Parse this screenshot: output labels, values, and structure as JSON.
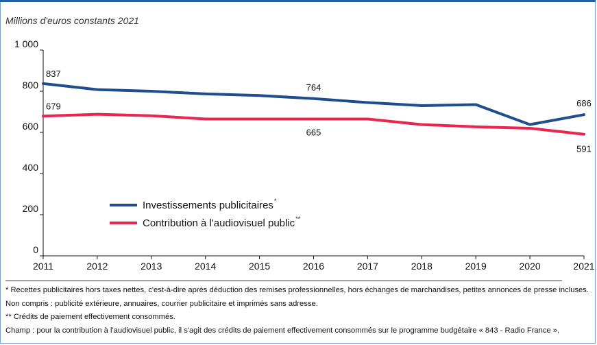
{
  "unit_label": "Millions d'euros constants 2021",
  "chart_data": {
    "type": "line",
    "x": [
      "2011",
      "2012",
      "2013",
      "2014",
      "2015",
      "2016",
      "2017",
      "2018",
      "2019",
      "2020",
      "2021"
    ],
    "ylim": [
      0,
      1000
    ],
    "yticks": [
      0,
      200,
      400,
      600,
      800,
      1000
    ],
    "ytick_labels": [
      "0",
      "200",
      "400",
      "600",
      "800",
      "1 000"
    ],
    "series": [
      {
        "name": "Investissements publicitaires",
        "marker": "*",
        "color": "#1f4e8c",
        "values": [
          837,
          808,
          800,
          787,
          779,
          764,
          745,
          730,
          735,
          638,
          686
        ]
      },
      {
        "name": "Contribution à l'audiovisuel public",
        "marker": "**",
        "color": "#e8264f",
        "values": [
          679,
          688,
          681,
          665,
          665,
          665,
          665,
          638,
          627,
          620,
          591
        ]
      }
    ],
    "data_labels": [
      {
        "series": 0,
        "index": 0,
        "text": "837"
      },
      {
        "series": 0,
        "index": 5,
        "text": "764"
      },
      {
        "series": 0,
        "index": 10,
        "text": "686"
      },
      {
        "series": 1,
        "index": 0,
        "text": "679"
      },
      {
        "series": 1,
        "index": 5,
        "text": "665"
      },
      {
        "series": 1,
        "index": 10,
        "text": "591"
      }
    ],
    "legend": "inside-bottom-left",
    "grid": false
  },
  "notes": [
    "* Recettes publicitaires hors taxes nettes, c'est-à-dire après déduction des remises professionnelles, hors échanges de marchandises, petites annonces de presse incluses.",
    "Non compris : publicité extérieure, annuaires, courrier publicitaire et imprimés sans adresse.",
    "** Crédits de paiement effectivement consommés.",
    "Champ : pour la contribution à l'audiovisuel public, il s'agit des crédits de paiement effectivement consommés sur le programme budgétaire « 843 - Radio France »."
  ]
}
